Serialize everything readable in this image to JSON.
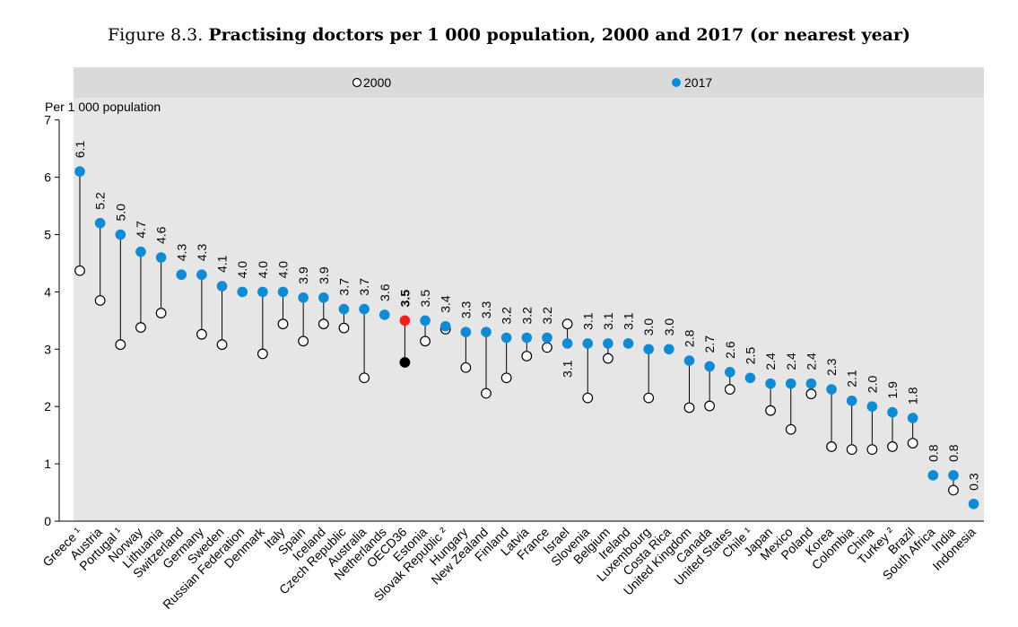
{
  "title": {
    "prefix": "Figure 8.3. ",
    "main": "Practising doctors per 1 000 population, 2000 and 2017 (or nearest year)"
  },
  "chart_data": {
    "type": "scatter",
    "ylabel": "Per 1 000 population",
    "ylim": [
      0,
      7
    ],
    "yticks": [
      0,
      1,
      2,
      3,
      4,
      5,
      6,
      7
    ],
    "grid": false,
    "legend_position": "top",
    "legend": [
      {
        "name": "2000",
        "marker": "hollow-circle"
      },
      {
        "name": "2017",
        "marker": "filled-circle",
        "color": "#0f8ad4"
      }
    ],
    "colors": {
      "series_2017": "#0f8ad4",
      "oecd_2017": "#ef2020",
      "oecd_2000": "#000000",
      "background": "#e6e6e6",
      "legend_band": "#dadada"
    },
    "highlight": "OECD36",
    "categories": [
      "Greece ¹",
      "Austria",
      "Portugal ¹",
      "Norway",
      "Lithuania",
      "Switzerland",
      "Germany",
      "Sweden",
      "Russian Federation",
      "Denmark",
      "Italy",
      "Spain",
      "Iceland",
      "Czech Republic",
      "Australia",
      "Netherlands",
      "OECD36",
      "Estonia",
      "Slovak Republic ²",
      "Hungary",
      "New Zealand",
      "Finland",
      "Latvia",
      "France",
      "Israel",
      "Slovenia",
      "Belgium",
      "Ireland",
      "Luxembourg",
      "Costa Rica",
      "United Kingdom",
      "Canada",
      "United States",
      "Chile ¹",
      "Japan",
      "Mexico",
      "Poland",
      "Korea",
      "Colombia",
      "China",
      "Turkey ²",
      "Brazil",
      "South Africa",
      "India",
      "Indonesia"
    ],
    "series": [
      {
        "name": "2000",
        "values": [
          4.37,
          3.85,
          3.08,
          3.38,
          3.63,
          null,
          3.26,
          3.08,
          null,
          2.92,
          3.44,
          3.14,
          3.44,
          3.37,
          2.5,
          null,
          2.77,
          3.14,
          3.35,
          2.68,
          2.23,
          2.5,
          2.88,
          3.03,
          3.44,
          2.15,
          2.84,
          null,
          2.15,
          null,
          1.98,
          2.01,
          2.3,
          null,
          1.93,
          1.6,
          2.22,
          1.3,
          1.25,
          1.25,
          1.3,
          1.36,
          null,
          0.54,
          null
        ]
      },
      {
        "name": "2017",
        "values": [
          6.1,
          5.2,
          5.0,
          4.7,
          4.6,
          4.3,
          4.3,
          4.1,
          4.0,
          4.0,
          4.0,
          3.9,
          3.9,
          3.7,
          3.7,
          3.6,
          3.5,
          3.5,
          3.4,
          3.3,
          3.3,
          3.2,
          3.2,
          3.2,
          3.1,
          3.1,
          3.1,
          3.1,
          3.0,
          3.0,
          2.8,
          2.7,
          2.6,
          2.5,
          2.4,
          2.4,
          2.4,
          2.3,
          2.1,
          2.0,
          1.9,
          1.8,
          0.8,
          0.8,
          0.3
        ]
      }
    ],
    "value_labels": [
      "6.1",
      "5.2",
      "5.0",
      "4.7",
      "4.6",
      "4.3",
      "4.3",
      "4.1",
      "4.0",
      "4.0",
      "4.0",
      "3.9",
      "3.9",
      "3.7",
      "3.7",
      "3.6",
      "3.5",
      "3.5",
      "3.4",
      "3.3",
      "3.3",
      "3.2",
      "3.2",
      "3.2",
      "3.1",
      "3.1",
      "3.1",
      "3.1",
      "3.0",
      "3.0",
      "2.8",
      "2.7",
      "2.6",
      "2.5",
      "2.4",
      "2.4",
      "2.4",
      "2.3",
      "2.1",
      "2.0",
      "1.9",
      "1.8",
      "0.8",
      "0.8",
      "0.3"
    ]
  }
}
